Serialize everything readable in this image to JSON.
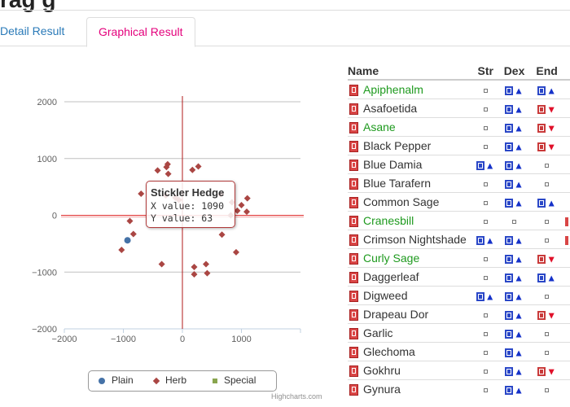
{
  "tabs": [
    {
      "label": "Detail Result",
      "active": false
    },
    {
      "label": "Graphical Result",
      "active": true
    }
  ],
  "chart_data": {
    "type": "scatter",
    "xlim": [
      -2000,
      2000
    ],
    "ylim": [
      -2000,
      2000
    ],
    "x_ticks": [
      "−2000",
      "−1000",
      "0",
      "1000"
    ],
    "y_ticks": [
      "2000",
      "1000",
      "0",
      "−1000",
      "−2000"
    ],
    "series": [
      {
        "name": "Plain",
        "color": "#4572A7",
        "marker": "circle",
        "points": [
          [
            -930,
            -440
          ]
        ]
      },
      {
        "name": "Herb",
        "color": "#AA4643",
        "marker": "diamond",
        "points": [
          [
            -250,
            900
          ],
          [
            -270,
            850
          ],
          [
            -420,
            790
          ],
          [
            -240,
            730
          ],
          [
            170,
            800
          ],
          [
            270,
            860
          ],
          [
            -700,
            380
          ],
          [
            -280,
            350
          ],
          [
            -120,
            310
          ],
          [
            -60,
            270
          ],
          [
            650,
            370
          ],
          [
            840,
            230
          ],
          [
            1100,
            300
          ],
          [
            1000,
            180
          ],
          [
            1090,
            63
          ],
          [
            930,
            80
          ],
          [
            820,
            0
          ],
          [
            -890,
            -100
          ],
          [
            -830,
            -330
          ],
          [
            -1030,
            -610
          ],
          [
            670,
            -340
          ],
          [
            910,
            -650
          ],
          [
            -350,
            -860
          ],
          [
            400,
            -860
          ],
          [
            200,
            -910
          ],
          [
            420,
            -1020
          ],
          [
            200,
            -1040
          ]
        ]
      },
      {
        "name": "Special",
        "color": "#89A54E",
        "marker": "square",
        "points": []
      }
    ]
  },
  "tooltip": {
    "title": "Stickler Hedge",
    "x_line": "X value: 1090",
    "y_line": "Y value: 63"
  },
  "legend": [
    {
      "label": "Plain",
      "color": "#4572A7"
    },
    {
      "label": "Herb",
      "color": "#AA4643"
    },
    {
      "label": "Special",
      "color": "#89A54E"
    }
  ],
  "credit": "Highcharts.com",
  "table": {
    "headers": [
      "Name",
      "Str",
      "Dex",
      "End"
    ],
    "rows": [
      {
        "name": "Apiphenalm",
        "green": true,
        "str": "dot",
        "dex": "up",
        "end": "up"
      },
      {
        "name": "Asafoetida",
        "green": false,
        "str": "dot",
        "dex": "up",
        "end": "down"
      },
      {
        "name": "Asane",
        "green": true,
        "str": "dot",
        "dex": "up",
        "end": "down"
      },
      {
        "name": "Black Pepper",
        "green": false,
        "str": "dot",
        "dex": "up",
        "end": "down"
      },
      {
        "name": "Blue Damia",
        "green": false,
        "str": "up",
        "dex": "up",
        "end": "dot"
      },
      {
        "name": "Blue Tarafern",
        "green": false,
        "str": "dot",
        "dex": "up",
        "end": "dot"
      },
      {
        "name": "Common Sage",
        "green": false,
        "str": "dot",
        "dex": "up",
        "end": "up"
      },
      {
        "name": "Cranesbill",
        "green": true,
        "str": "dot",
        "dex": "dot",
        "end": "dot"
      },
      {
        "name": "Crimson Nightshade",
        "green": false,
        "str": "up",
        "dex": "up",
        "end": "dot"
      },
      {
        "name": "Curly Sage",
        "green": true,
        "str": "dot",
        "dex": "up",
        "end": "down"
      },
      {
        "name": "Daggerleaf",
        "green": false,
        "str": "dot",
        "dex": "up",
        "end": "up"
      },
      {
        "name": "Digweed",
        "green": false,
        "str": "up",
        "dex": "up",
        "end": "dot"
      },
      {
        "name": "Drapeau Dor",
        "green": false,
        "str": "dot",
        "dex": "up",
        "end": "down"
      },
      {
        "name": "Garlic",
        "green": false,
        "str": "dot",
        "dex": "up",
        "end": "dot"
      },
      {
        "name": "Glechoma",
        "green": false,
        "str": "dot",
        "dex": "up",
        "end": "dot"
      },
      {
        "name": "Gokhru",
        "green": false,
        "str": "dot",
        "dex": "up",
        "end": "down"
      },
      {
        "name": "Gynura",
        "green": false,
        "str": "dot",
        "dex": "up",
        "end": "dot"
      }
    ]
  }
}
